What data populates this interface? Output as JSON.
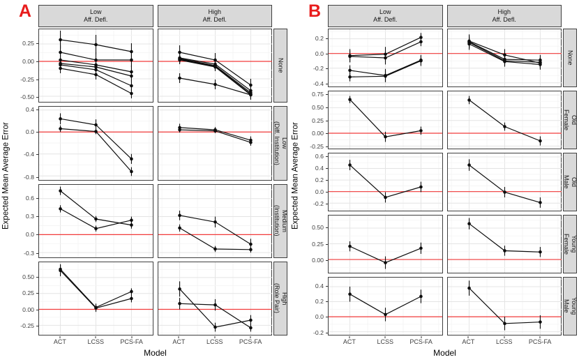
{
  "styles": {
    "panel_label_red": "#e81c1c",
    "zero_line_red": "#f23b3b",
    "strip_bg": "#d9d9d9",
    "panel_border": "#3f3f3f",
    "grid_major": "#e4e4e4",
    "grid_minor": "#f3f3f3",
    "data_ink": "#0d0d0d",
    "tick_text": "#404040"
  },
  "chart_data": {
    "type": "line",
    "description": "Faceted point-range line chart, points with vertical error bars, red horizontal reference line at y=0",
    "panels": [
      {
        "label": "A",
        "xlabel": "Model",
        "ylabel": "Expected Mean Average Error",
        "x_categories": [
          "ACT",
          "LCSS",
          "PCS-FA"
        ],
        "col_headers": [
          "Low\nAff. Defl.",
          "High\nAff. Defl."
        ],
        "rows": [
          {
            "header": "None",
            "ylim": [
              -0.58,
              0.46
            ],
            "ticks": [
              "0.25",
              "0.00",
              "-0.25",
              "-0.50"
            ],
            "cells": [
              {
                "series": [
                  {
                    "y": [
                      0.31,
                      0.24,
                      0.14
                    ],
                    "err": [
                      0.13,
                      0.14,
                      0.12
                    ]
                  },
                  {
                    "y": [
                      0.13,
                      0.02,
                      0.02
                    ],
                    "err": [
                      0.1,
                      0.11,
                      0.1
                    ]
                  },
                  {
                    "y": [
                      0.02,
                      -0.05,
                      -0.15
                    ],
                    "err": [
                      0.08,
                      0.08,
                      0.09
                    ]
                  },
                  {
                    "y": [
                      -0.03,
                      -0.08,
                      -0.21
                    ],
                    "err": [
                      0.07,
                      0.07,
                      0.08
                    ]
                  },
                  {
                    "y": [
                      -0.05,
                      -0.12,
                      -0.35
                    ],
                    "err": [
                      0.07,
                      0.07,
                      0.08
                    ]
                  },
                  {
                    "y": [
                      -0.1,
                      -0.19,
                      -0.46
                    ],
                    "err": [
                      0.07,
                      0.07,
                      0.07
                    ]
                  }
                ]
              },
              {
                "series": [
                  {
                    "y": [
                      0.13,
                      0.02,
                      -0.34
                    ],
                    "err": [
                      0.1,
                      0.1,
                      0.09
                    ]
                  },
                  {
                    "y": [
                      0.05,
                      -0.04,
                      -0.42
                    ],
                    "err": [
                      0.07,
                      0.07,
                      0.07
                    ]
                  },
                  {
                    "y": [
                      0.04,
                      -0.06,
                      -0.45
                    ],
                    "err": [
                      0.06,
                      0.06,
                      0.06
                    ]
                  },
                  {
                    "y": [
                      0.03,
                      -0.07,
                      -0.47
                    ],
                    "err": [
                      0.06,
                      0.06,
                      0.06
                    ]
                  },
                  {
                    "y": [
                      0.02,
                      -0.08,
                      -0.48
                    ],
                    "err": [
                      0.06,
                      0.06,
                      0.06
                    ]
                  },
                  {
                    "y": [
                      -0.24,
                      -0.33,
                      -0.48
                    ],
                    "err": [
                      0.07,
                      0.07,
                      0.07
                    ]
                  }
                ]
              }
            ]
          },
          {
            "header": "Low\n(Diff. Institution)",
            "ylim": [
              -0.86,
              0.46
            ],
            "ticks": [
              "0.4",
              "0.0",
              "-0.4",
              "-0.8"
            ],
            "cells": [
              {
                "series": [
                  {
                    "y": [
                      0.24,
                      0.13,
                      -0.49
                    ],
                    "err": [
                      0.1,
                      0.1,
                      0.09
                    ]
                  },
                  {
                    "y": [
                      0.06,
                      0.01,
                      -0.72
                    ],
                    "err": [
                      0.06,
                      0.05,
                      0.08
                    ]
                  }
                ]
              },
              {
                "series": [
                  {
                    "y": [
                      0.08,
                      0.04,
                      -0.15
                    ],
                    "err": [
                      0.07,
                      0.05,
                      0.07
                    ]
                  },
                  {
                    "y": [
                      0.04,
                      0.02,
                      -0.19
                    ],
                    "err": [
                      0.05,
                      0.04,
                      0.06
                    ]
                  }
                ]
              }
            ]
          },
          {
            "header": "Medium\n(Institution)",
            "ylim": [
              -0.38,
              0.83
            ],
            "ticks": [
              "0.6",
              "0.3",
              "0.0",
              "-0.3"
            ],
            "cells": [
              {
                "series": [
                  {
                    "y": [
                      0.73,
                      0.26,
                      0.16
                    ],
                    "err": [
                      0.07,
                      0.05,
                      0.06
                    ]
                  },
                  {
                    "y": [
                      0.43,
                      0.1,
                      0.24
                    ],
                    "err": [
                      0.06,
                      0.05,
                      0.06
                    ]
                  }
                ]
              },
              {
                "series": [
                  {
                    "y": [
                      0.32,
                      0.21,
                      -0.16
                    ],
                    "err": [
                      0.08,
                      0.09,
                      0.09
                    ]
                  },
                  {
                    "y": [
                      0.11,
                      -0.24,
                      -0.25
                    ],
                    "err": [
                      0.06,
                      0.05,
                      0.05
                    ]
                  }
                ]
              }
            ]
          },
          {
            "header": "High\n(Role Pair)",
            "ylim": [
              -0.4,
              0.74
            ],
            "ticks": [
              "0.50",
              "0.25",
              "0.00",
              "-0.25"
            ],
            "cells": [
              {
                "series": [
                  {
                    "y": [
                      0.63,
                      0.03,
                      0.28
                    ],
                    "err": [
                      0.08,
                      0.06,
                      0.05
                    ]
                  },
                  {
                    "y": [
                      0.61,
                      0.02,
                      0.17
                    ],
                    "err": [
                      0.09,
                      0.06,
                      0.06
                    ]
                  }
                ]
              },
              {
                "series": [
                  {
                    "y": [
                      0.32,
                      -0.28,
                      -0.17
                    ],
                    "err": [
                      0.12,
                      0.07,
                      0.08
                    ]
                  },
                  {
                    "y": [
                      0.09,
                      0.07,
                      -0.29
                    ],
                    "err": [
                      0.09,
                      0.09,
                      0.06
                    ]
                  }
                ]
              }
            ]
          }
        ]
      },
      {
        "label": "B",
        "xlabel": "Model",
        "ylabel": "Expected Mean Average Error",
        "x_categories": [
          "ACT",
          "LCSS",
          "PCS-FA"
        ],
        "col_headers": [
          "Low\nAff. Defl.",
          "High\nAff. Defl."
        ],
        "rows": [
          {
            "header": "None",
            "ylim": [
              -0.45,
              0.33
            ],
            "ticks": [
              "0.2",
              "0.0",
              "-0.2",
              "-0.4"
            ],
            "cells": [
              {
                "series": [
                  {
                    "y": [
                      -0.03,
                      -0.01,
                      0.22
                    ],
                    "err": [
                      0.09,
                      0.1,
                      0.06
                    ]
                  },
                  {
                    "y": [
                      -0.04,
                      -0.06,
                      0.16
                    ],
                    "err": [
                      0.08,
                      0.09,
                      0.06
                    ]
                  },
                  {
                    "y": [
                      -0.23,
                      -0.3,
                      -0.09
                    ],
                    "err": [
                      0.07,
                      0.09,
                      0.07
                    ]
                  },
                  {
                    "y": [
                      -0.32,
                      -0.31,
                      -0.1
                    ],
                    "err": [
                      0.06,
                      0.08,
                      0.07
                    ]
                  }
                ]
              },
              {
                "series": [
                  {
                    "y": [
                      0.17,
                      -0.02,
                      -0.13
                    ],
                    "err": [
                      0.09,
                      0.08,
                      0.07
                    ]
                  },
                  {
                    "y": [
                      0.16,
                      -0.08,
                      -0.09
                    ],
                    "err": [
                      0.08,
                      0.07,
                      0.07
                    ]
                  },
                  {
                    "y": [
                      0.15,
                      -0.1,
                      -0.12
                    ],
                    "err": [
                      0.08,
                      0.07,
                      0.07
                    ]
                  },
                  {
                    "y": [
                      0.13,
                      -0.11,
                      -0.15
                    ],
                    "err": [
                      0.08,
                      0.07,
                      0.07
                    ]
                  }
                ]
              }
            ]
          },
          {
            "header": "Old\nFemale",
            "ylim": [
              -0.3,
              0.82
            ],
            "ticks": [
              "0.75",
              "0.50",
              "0.25",
              "0.00",
              "-0.25"
            ],
            "cells": [
              {
                "series": [
                  {
                    "y": [
                      0.66,
                      -0.07,
                      0.05
                    ],
                    "err": [
                      0.07,
                      0.1,
                      0.08
                    ]
                  }
                ]
              },
              {
                "series": [
                  {
                    "y": [
                      0.65,
                      0.13,
                      -0.15
                    ],
                    "err": [
                      0.08,
                      0.08,
                      0.09
                    ]
                  }
                ]
              }
            ]
          },
          {
            "header": "Old\nMale",
            "ylim": [
              -0.33,
              0.66
            ],
            "ticks": [
              "0.6",
              "0.4",
              "0.2",
              "0.0",
              "-0.2"
            ],
            "cells": [
              {
                "series": [
                  {
                    "y": [
                      0.46,
                      -0.1,
                      0.08
                    ],
                    "err": [
                      0.09,
                      0.09,
                      0.09
                    ]
                  }
                ]
              },
              {
                "series": [
                  {
                    "y": [
                      0.46,
                      -0.01,
                      -0.19
                    ],
                    "err": [
                      0.1,
                      0.09,
                      0.09
                    ]
                  }
                ]
              }
            ]
          },
          {
            "header": "Young\nFemale",
            "ylim": [
              -0.21,
              0.7
            ],
            "ticks": [
              "0.50",
              "0.25",
              "0.00"
            ],
            "cells": [
              {
                "series": [
                  {
                    "y": [
                      0.21,
                      -0.05,
                      0.18
                    ],
                    "err": [
                      0.08,
                      0.1,
                      0.09
                    ]
                  }
                ]
              },
              {
                "series": [
                  {
                    "y": [
                      0.57,
                      0.14,
                      0.12
                    ],
                    "err": [
                      0.09,
                      0.08,
                      0.08
                    ]
                  }
                ]
              }
            ]
          },
          {
            "header": "Young\nMale",
            "ylim": [
              -0.24,
              0.52
            ],
            "ticks": [
              "0.4",
              "0.2",
              "0.0",
              "-0.2"
            ],
            "cells": [
              {
                "series": [
                  {
                    "y": [
                      0.3,
                      0.03,
                      0.27
                    ],
                    "err": [
                      0.1,
                      0.09,
                      0.09
                    ]
                  }
                ]
              },
              {
                "series": [
                  {
                    "y": [
                      0.38,
                      -0.09,
                      -0.07
                    ],
                    "err": [
                      0.1,
                      0.09,
                      0.09
                    ]
                  }
                ]
              }
            ]
          }
        ]
      }
    ]
  }
}
